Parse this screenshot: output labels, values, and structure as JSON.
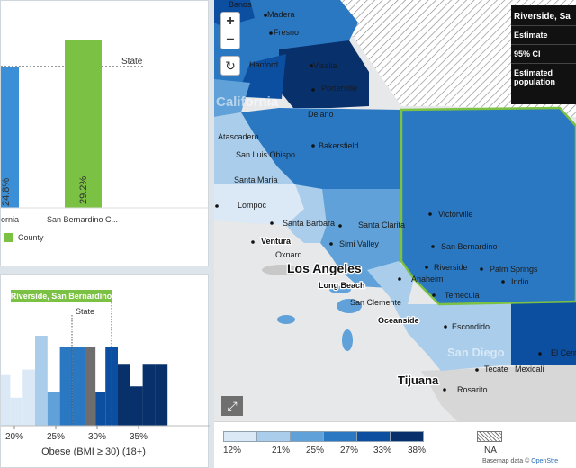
{
  "bar_chart": {
    "state_label": "State",
    "bars": [
      {
        "category": "ornia",
        "value_label": "24.8%",
        "color": "#3a8fd6"
      },
      {
        "category": "San Bernardino C...",
        "value_label": "29.2%",
        "color": "#7bc143"
      }
    ],
    "legend_label": "County"
  },
  "histogram": {
    "highlight_label": "Riverside, San Bernardino",
    "state_label": "State",
    "x_ticks": [
      "20%",
      "25%",
      "30%",
      "35%"
    ],
    "xlabel": "Obese (BMI ≥ 30) (18+)"
  },
  "map": {
    "zoom_in": "+",
    "zoom_out": "−",
    "reset_icon": "↻",
    "expand_icon": "⤢",
    "place_labels": [
      "Banos",
      "Madera",
      "Fresno",
      "Hanford",
      "Visalia",
      "Porterville",
      "California",
      "Delano",
      "Atascadero",
      "San Luis Obispo",
      "Bakersfield",
      "Santa Maria",
      "Lompoc",
      "Santa Barbara",
      "Santa Clarita",
      "Ventura",
      "Oxnard",
      "Simi Valley",
      "Victorville",
      "San Bernardino",
      "Los Angeles",
      "Long Beach",
      "Riverside",
      "Palm Springs",
      "Indio",
      "Anaheim",
      "Temecula",
      "San Clemente",
      "Oceanside",
      "Escondido",
      "San Diego",
      "El Centro",
      "Tecate",
      "Mexicali",
      "Tijuana",
      "Rosarito"
    ],
    "tooltip": {
      "title": "Riverside, Sa",
      "rows": [
        "Estimate",
        "95% CI",
        "Estimated population"
      ]
    },
    "legend_ticks": [
      "12%",
      "21%",
      "25%",
      "27%",
      "33%",
      "38%"
    ],
    "legend_colors": [
      "#dbe9f6",
      "#a9cdea",
      "#5fa1d8",
      "#2b78c2",
      "#0c4ea0",
      "#08306b"
    ],
    "na_label": "NA",
    "attribution_prefix": "Basemap data © ",
    "attribution_link": "OpenStre"
  },
  "chart_data": [
    {
      "type": "bar",
      "categories": [
        "ornia",
        "San Bernardino C..."
      ],
      "values": [
        24.8,
        29.2
      ],
      "reference_line": {
        "label": "State",
        "value": 27
      },
      "legend": [
        "County"
      ],
      "ylim": [
        0,
        35
      ]
    },
    {
      "type": "bar",
      "title": "Riverside, San Bernardino",
      "xlabel": "Obese (BMI ≥ 30) (18+)",
      "x_ticks": [
        "20%",
        "25%",
        "30%",
        "35%"
      ],
      "bins": [
        {
          "x0": 15.0,
          "x1": 17.0,
          "count": 1.5,
          "color": "#dbe9f6"
        },
        {
          "x0": 17.0,
          "x1": 19.5,
          "count": 4.5,
          "color": "#dbe9f6"
        },
        {
          "x0": 19.5,
          "x1": 21.0,
          "count": 2.5,
          "color": "#dbe9f6"
        },
        {
          "x0": 21.0,
          "x1": 22.5,
          "count": 5.0,
          "color": "#dbe9f6"
        },
        {
          "x0": 22.5,
          "x1": 24.0,
          "count": 8.0,
          "color": "#a9cdea"
        },
        {
          "x0": 24.0,
          "x1": 25.5,
          "count": 3.0,
          "color": "#5fa1d8"
        },
        {
          "x0": 25.5,
          "x1": 27.0,
          "count": 7.0,
          "color": "#2b78c2"
        },
        {
          "x0": 27.0,
          "x1": 28.5,
          "count": 7.0,
          "color": "#2b78c2"
        },
        {
          "x0": 28.5,
          "x1": 29.8,
          "count": 7.0,
          "color": "#6e6e6e"
        },
        {
          "x0": 29.8,
          "x1": 31.0,
          "count": 3.0,
          "color": "#0c4ea0"
        },
        {
          "x0": 31.0,
          "x1": 32.5,
          "count": 7.0,
          "color": "#0c4ea0"
        },
        {
          "x0": 32.5,
          "x1": 34.0,
          "count": 5.5,
          "color": "#08306b"
        },
        {
          "x0": 34.0,
          "x1": 35.5,
          "count": 3.5,
          "color": "#08306b"
        },
        {
          "x0": 35.5,
          "x1": 37.0,
          "count": 5.5,
          "color": "#08306b"
        },
        {
          "x0": 37.0,
          "x1": 38.5,
          "count": 5.5,
          "color": "#08306b"
        }
      ],
      "state_value": 29.3,
      "highlight_value": 28.5
    }
  ]
}
